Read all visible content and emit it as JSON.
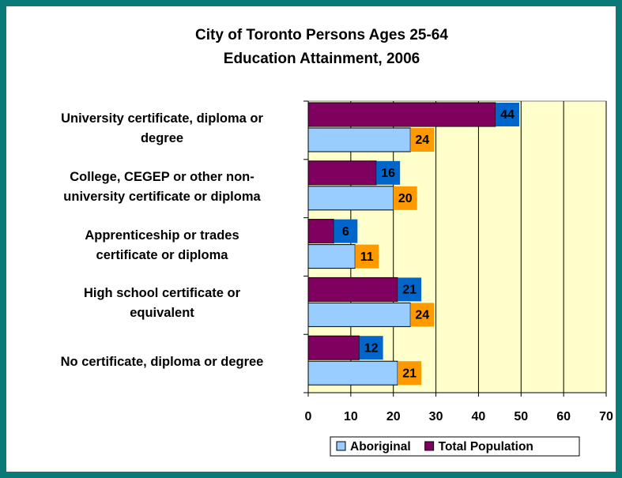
{
  "chart_data": {
    "type": "barh",
    "title": [
      "City of Toronto Persons Ages 25-64",
      "Education Attainment, 2006"
    ],
    "categories": [
      "University certificate, diploma or\ndegree",
      "College, CEGEP or other non-\nuniversity certificate or diploma",
      "Apprenticeship or trades\ncertificate or diploma",
      "High school certificate or\nequivalent",
      "No certificate, diploma or degree"
    ],
    "series": [
      {
        "name": "Aboriginal",
        "color": "#99ccff",
        "label_color": "#ff9900",
        "values": [
          24,
          20,
          11,
          24,
          21
        ]
      },
      {
        "name": "Total Population",
        "color": "#800060",
        "label_color": "#0066cc",
        "values": [
          44,
          16,
          6,
          21,
          12
        ]
      }
    ],
    "xlim": [
      0,
      70
    ],
    "xticks": [
      0,
      10,
      20,
      30,
      40,
      50,
      60,
      70
    ],
    "grid": true,
    "legend": "bottom"
  }
}
